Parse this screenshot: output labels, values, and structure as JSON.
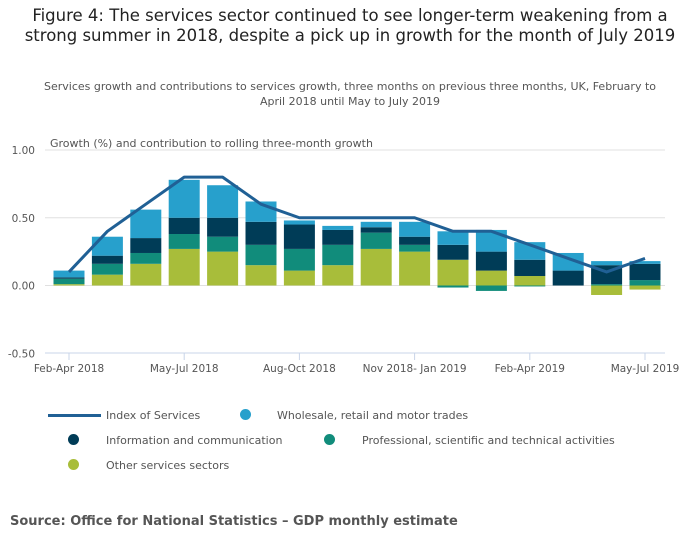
{
  "title": "Figure 4: The services sector continued to see longer-term weakening from a strong summer in 2018, despite a pick up in growth for the month of July 2019",
  "subtitle": "Services growth and contributions to services growth, three months on previous three months, UK, February to April 2018 until May to July 2019",
  "source": "Source: Office for National Statistics – GDP monthly estimate",
  "chart_data": {
    "type": "bar",
    "stacked": true,
    "ylabel": "Growth (%) and contribution to rolling three-month growth",
    "ylim": [
      -0.5,
      1.0
    ],
    "yticks": [
      "1.00",
      "0.50",
      "0.00",
      "-0.50"
    ],
    "ytick_values": [
      1.0,
      0.5,
      0.0,
      -0.5
    ],
    "grid": true,
    "categories": [
      "Feb-Apr 2018",
      "",
      "",
      "May-Jul 2018",
      "",
      "",
      "Aug-Oct 2018",
      "",
      "",
      "Nov 2018- Jan 2019",
      "",
      "",
      "Feb-Apr 2019",
      "",
      "",
      "May-Jul 2019"
    ],
    "series": [
      {
        "name": "Other services sectors",
        "color": "#a8bd3a",
        "values": [
          0.01,
          0.08,
          0.16,
          0.27,
          0.25,
          0.15,
          0.11,
          0.15,
          0.27,
          0.25,
          0.19,
          0.11,
          0.07,
          0.0,
          -0.07,
          -0.03
        ]
      },
      {
        "name": "Professional, scientific and technical activities",
        "color": "#118c7b",
        "values": [
          0.04,
          0.08,
          0.08,
          0.11,
          0.11,
          0.15,
          0.16,
          0.15,
          0.12,
          0.05,
          -0.015,
          -0.04,
          -0.007,
          0.0,
          0.01,
          0.04
        ]
      },
      {
        "name": "Information and communication",
        "color": "#003c57",
        "values": [
          0.01,
          0.06,
          0.11,
          0.12,
          0.14,
          0.17,
          0.18,
          0.11,
          0.04,
          0.06,
          0.11,
          0.14,
          0.12,
          0.11,
          0.14,
          0.12
        ]
      },
      {
        "name": "Wholesale, retail and motor trades",
        "color": "#27a0cc",
        "values": [
          0.05,
          0.14,
          0.21,
          0.28,
          0.24,
          0.15,
          0.03,
          0.03,
          0.04,
          0.11,
          0.1,
          0.16,
          0.13,
          0.13,
          0.03,
          0.02
        ]
      }
    ],
    "line": {
      "name": "Index of Services",
      "color": "#206095",
      "values": [
        0.1,
        0.4,
        0.6,
        0.8,
        0.8,
        0.6,
        0.5,
        0.5,
        0.5,
        0.5,
        0.4,
        0.4,
        0.3,
        0.2,
        0.1,
        0.2
      ]
    },
    "legend": "bottom"
  }
}
